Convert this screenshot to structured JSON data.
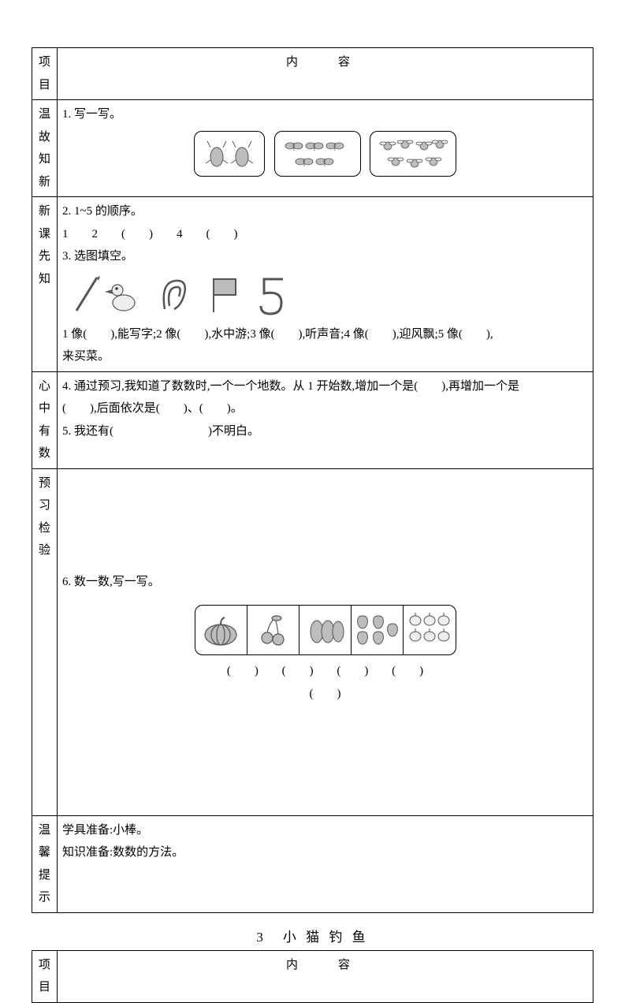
{
  "header": {
    "col1": "项目",
    "col2": "内　容"
  },
  "row1": {
    "label": "温故知新",
    "q1": "1. 写一写。"
  },
  "row2": {
    "label": "新课先知",
    "q2": "2. 1~5 的顺序。",
    "seq": "1　　2　　(　　)　　4　　(　　)",
    "q3": "3. 选图填空。",
    "line3a": "1 像(　　),能写字;2 像(　　),水中游;3 像(　　),听声音;4 像(　　),迎风飘;5 像(　　),",
    "line3b": "来买菜。"
  },
  "row3": {
    "label": "心中有数",
    "q4a": "4. 通过预习,我知道了数数时,一个一个地数。从 1 开始数,增加一个是(　　),再增加一个是",
    "q4b": "(　　),后面依次是(　　)、(　　)。",
    "q5": "5. 我还有(　　　　　　　　)不明白。"
  },
  "row4": {
    "label": "预习检验",
    "q6": "6. 数一数,写一写。",
    "ans": {
      "a": "(　　)",
      "b": "(　　)",
      "c": "(　　)",
      "d": "(　　)",
      "e": "(　　)"
    }
  },
  "row5": {
    "label": "温馨提示",
    "l1": "学具准备:小棒。",
    "l2": "知识准备:数数的方法。"
  },
  "nextTitle": "3　小 猫 钓 鱼",
  "header2": {
    "col1": "项目",
    "col2": "内　容"
  },
  "colors": {
    "icon": "#555555",
    "iconFill": "#bdbdbd",
    "border": "#000000"
  }
}
